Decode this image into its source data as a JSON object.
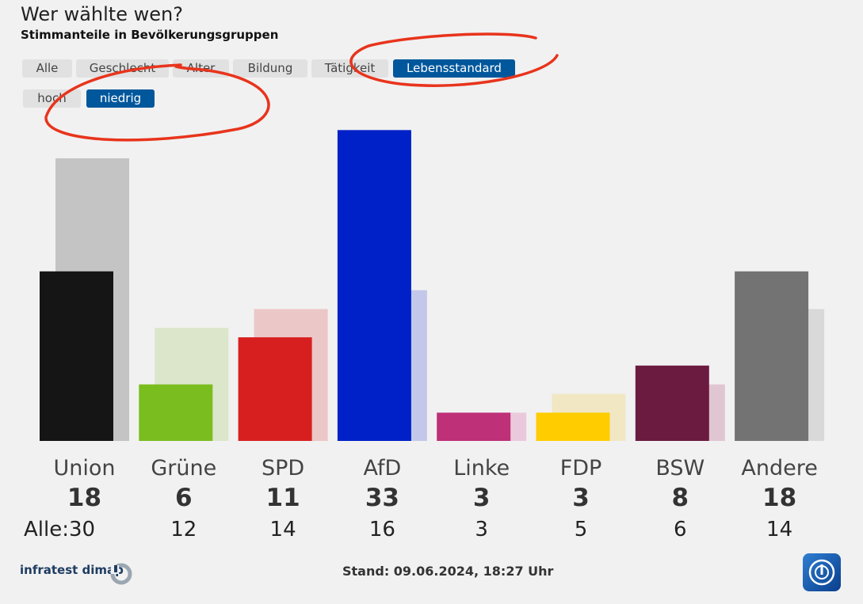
{
  "header": {
    "title": "Wer wählte wen?",
    "subtitle": "Stimmanteile in Bevölkerungsgruppen"
  },
  "tabs": [
    {
      "label": "Alle",
      "active": false
    },
    {
      "label": "Geschlecht",
      "active": false
    },
    {
      "label": "Alter",
      "active": false
    },
    {
      "label": "Bildung",
      "active": false
    },
    {
      "label": "Tätigkeit",
      "active": false
    },
    {
      "label": "Lebensstandard",
      "active": true
    }
  ],
  "subtabs": [
    {
      "label": "hoch",
      "active": false
    },
    {
      "label": "niedrig",
      "active": true
    }
  ],
  "colors": {
    "accent": "#00579c",
    "annotation": "#e8341c"
  },
  "chart_data": {
    "type": "bar",
    "categories": [
      "Union",
      "Grüne",
      "SPD",
      "AfD",
      "Linke",
      "FDP",
      "BSW",
      "Andere"
    ],
    "series": [
      {
        "values": [
          18,
          6,
          11,
          33,
          3,
          3,
          8,
          18
        ],
        "colors": [
          "#151515",
          "#7abd1e",
          "#d81f1f",
          "#0021c7",
          "#be3078",
          "#ffcc00",
          "#6b1a40",
          "#737373"
        ]
      },
      {
        "values": [
          30,
          12,
          14,
          16,
          3,
          5,
          6,
          14
        ],
        "colors": [
          "#c4c4c4",
          "#dbe6cb",
          "#ecc7c7",
          "#c3c7ea",
          "#ebc9dc",
          "#f1e7c3",
          "#dfc6d1",
          "#d9d9d9"
        ]
      }
    ],
    "value_labels": [
      "18",
      "6",
      "11",
      "33",
      "3",
      "3",
      "8",
      "18"
    ],
    "all_labels": [
      "Alle:30",
      "12",
      "14",
      "16",
      "3",
      "5",
      "6",
      "14"
    ],
    "ylim": [
      0,
      33
    ]
  },
  "footer": {
    "source": "infratest dimap",
    "stand": "Stand: 09.06.2024, 18:27 Uhr",
    "logo_icon": "tagesschau-logo-icon"
  }
}
